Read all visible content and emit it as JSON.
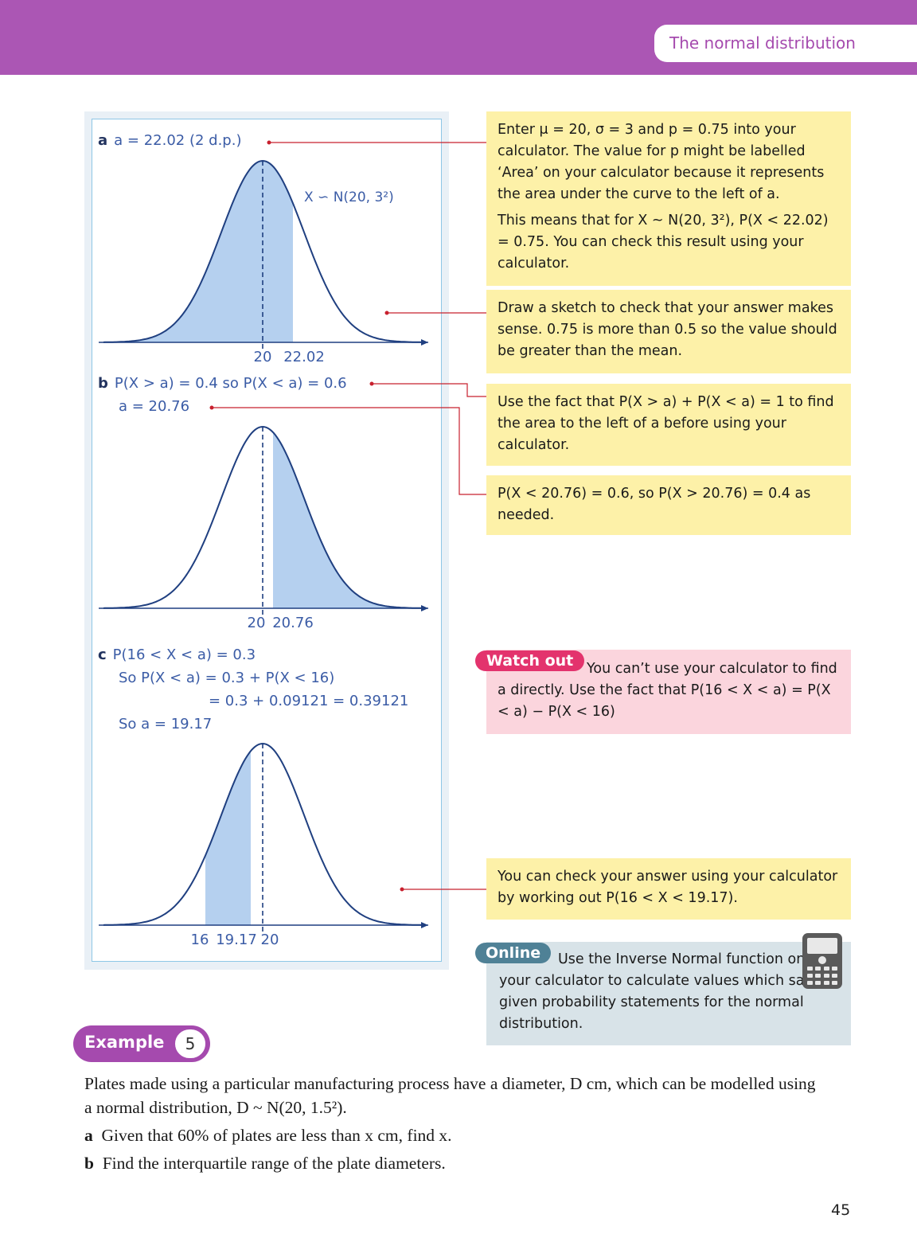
{
  "header": {
    "chapter_title": "The normal distribution"
  },
  "working": {
    "a_label": "a",
    "a_line": "a = 22.02 (2 d.p.)",
    "a_dist": "X ∽ N(20, 3²)",
    "a_ticks": [
      "20",
      "22.02"
    ],
    "b_label": "b",
    "b_line1": "P(X > a) = 0.4 so P(X < a) = 0.6",
    "b_line2": "a = 20.76",
    "b_ticks": [
      "20",
      "20.76"
    ],
    "c_label": "c",
    "c_line1": "P(16 < X < a) = 0.3",
    "c_line2": "So P(X < a) = 0.3 + P(X < 16)",
    "c_line3": "= 0.3 + 0.09121 = 0.39121",
    "c_line4": "So a = 19.17",
    "c_ticks": [
      "16",
      "19.17",
      "20"
    ]
  },
  "notes": {
    "n1_p1": "Enter μ = 20, σ = 3 and p = 0.75 into your calculator. The value for p might be labelled ‘Area’ on your calculator because it represents the area under the curve to the left of a.",
    "n1_p2": "This means that for X ~ N(20, 3²), P(X < 22.02) = 0.75. You can check this result using your calculator.",
    "n2": "Draw a sketch to check that your answer makes sense. 0.75 is more than 0.5 so the value should be greater than the mean.",
    "n3": "Use the fact that P(X > a) + P(X < a) = 1 to find the area to the left of a before using your calculator.",
    "n4": "P(X < 20.76) = 0.6, so P(X > 20.76) = 0.4 as needed.",
    "n5": "You can check your answer using your calculator by working out P(16 < X < 19.17)."
  },
  "watch_out": {
    "badge": "Watch out",
    "text": "You can’t use your calculator to find a directly. Use the fact that P(16 < X < a) = P(X < a) − P(X < 16)"
  },
  "online": {
    "badge": "Online",
    "text": "Use the Inverse Normal function on your calculator to calculate values which satisfy given probability statements for the normal distribution."
  },
  "example": {
    "label": "Example",
    "number": "5",
    "text1": "Plates made using a particular manufacturing process have a diameter, D cm, which can be modelled using a normal distribution, D ~ N(20, 1.5²).",
    "a_label": "a",
    "a_text": "Given that 60% of plates are less than x cm, find x.",
    "b_label": "b",
    "b_text": "Find the interquartile range of the plate diameters."
  },
  "page_number": "45",
  "colors": {
    "header": "#ab56b4",
    "note": "#fdf1a8",
    "watch": "#fbd5dd",
    "online": "#d8e3e8",
    "curve": "#1f3f80",
    "shade": "#b5d0ef",
    "leader": "#c8202e"
  }
}
